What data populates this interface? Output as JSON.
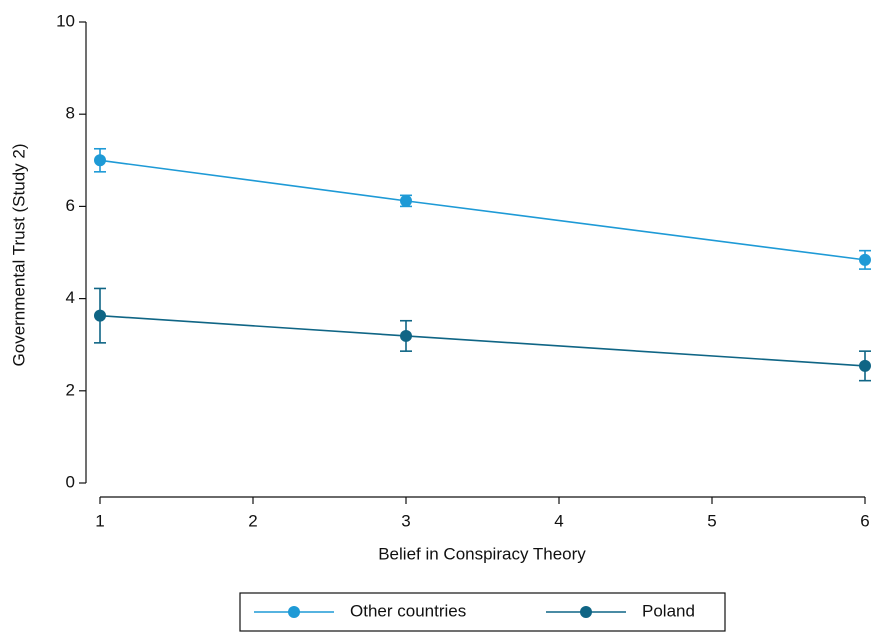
{
  "chart_data": {
    "type": "line",
    "xlabel": "Belief in Conspiracy Theory",
    "ylabel": "Governmental Trust (Study 2)",
    "x": [
      1,
      3,
      6
    ],
    "xlim": [
      1,
      6
    ],
    "xticks": [
      1,
      2,
      3,
      4,
      5,
      6
    ],
    "ylim": [
      0,
      10
    ],
    "yticks": [
      0,
      2,
      4,
      6,
      8,
      10
    ],
    "legend": "bottom",
    "series": [
      {
        "name": "Other countries",
        "color": "#1e9ad6",
        "values": [
          7.0,
          6.12,
          4.84
        ],
        "errors": [
          0.25,
          0.12,
          0.2
        ]
      },
      {
        "name": "Poland",
        "color": "#0f6585",
        "values": [
          3.63,
          3.19,
          2.54
        ],
        "errors": [
          0.59,
          0.33,
          0.32
        ]
      }
    ]
  }
}
